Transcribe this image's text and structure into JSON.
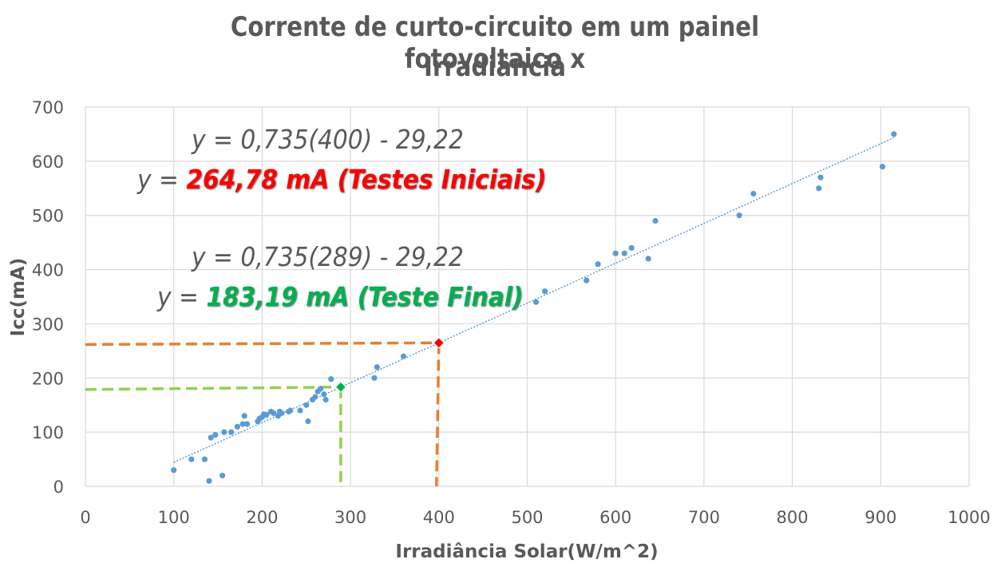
{
  "chart_data": {
    "type": "scatter",
    "title_line1": "Corrente de curto-circuito em um painel fotovoltaico x",
    "title_line2": "Irradiância",
    "xlabel": "Irradiância Solar(W/m^2)",
    "ylabel": "Icc(mA)",
    "xlim": [
      0,
      1000
    ],
    "ylim": [
      0,
      700
    ],
    "x_ticks": [
      "0",
      "100",
      "200",
      "300",
      "400",
      "500",
      "600",
      "700",
      "800",
      "900",
      "1000"
    ],
    "y_ticks": [
      "0",
      "100",
      "200",
      "300",
      "400",
      "500",
      "600",
      "700"
    ],
    "grid": true,
    "colors": {
      "points": "#5b9bd5",
      "trendline": "#5b9bd5",
      "initial": "#ff0000",
      "final": "#00b050",
      "guide_initial": "#ed7d31",
      "guide_final": "#92d050"
    },
    "points": [
      [
        100,
        30
      ],
      [
        120,
        50
      ],
      [
        135,
        50
      ],
      [
        140,
        10
      ],
      [
        142,
        90
      ],
      [
        147,
        95
      ],
      [
        155,
        20
      ],
      [
        157,
        100
      ],
      [
        165,
        100
      ],
      [
        172,
        110
      ],
      [
        178,
        115
      ],
      [
        180,
        130
      ],
      [
        183,
        115
      ],
      [
        195,
        120
      ],
      [
        197,
        125
      ],
      [
        200,
        128
      ],
      [
        202,
        133
      ],
      [
        205,
        132
      ],
      [
        210,
        138
      ],
      [
        213,
        135
      ],
      [
        218,
        130
      ],
      [
        220,
        138
      ],
      [
        222,
        135
      ],
      [
        230,
        138
      ],
      [
        232,
        140
      ],
      [
        243,
        140
      ],
      [
        250,
        150
      ],
      [
        252,
        120
      ],
      [
        257,
        160
      ],
      [
        260,
        165
      ],
      [
        263,
        175
      ],
      [
        266,
        180
      ],
      [
        270,
        170
      ],
      [
        272,
        160
      ],
      [
        278,
        198
      ],
      [
        327,
        200
      ],
      [
        330,
        220
      ],
      [
        360,
        240
      ],
      [
        510,
        340
      ],
      [
        520,
        360
      ],
      [
        567,
        380
      ],
      [
        580,
        410
      ],
      [
        600,
        430
      ],
      [
        610,
        430
      ],
      [
        618,
        440
      ],
      [
        637,
        420
      ],
      [
        645,
        490
      ],
      [
        740,
        500
      ],
      [
        756,
        540
      ],
      [
        830,
        550
      ],
      [
        832,
        570
      ],
      [
        902,
        590
      ],
      [
        915,
        650
      ]
    ],
    "trendline": {
      "slope": 0.735,
      "intercept": -29.22,
      "x_range": [
        100,
        915
      ]
    },
    "highlights": [
      {
        "name": "Testes Iniciais",
        "x": 400,
        "y": 264.78
      },
      {
        "name": "Teste Final",
        "x": 289,
        "y": 183.19
      }
    ],
    "annotations": {
      "initial_eq": "y = 0,735(400) - 29,22",
      "initial_prefix": "y = ",
      "initial_result": "264,78 mA (Testes Iniciais)",
      "final_eq": "y = 0,735(289) - 29,22",
      "final_prefix": "y = ",
      "final_result": "183,19 mA (Teste Final)"
    }
  }
}
